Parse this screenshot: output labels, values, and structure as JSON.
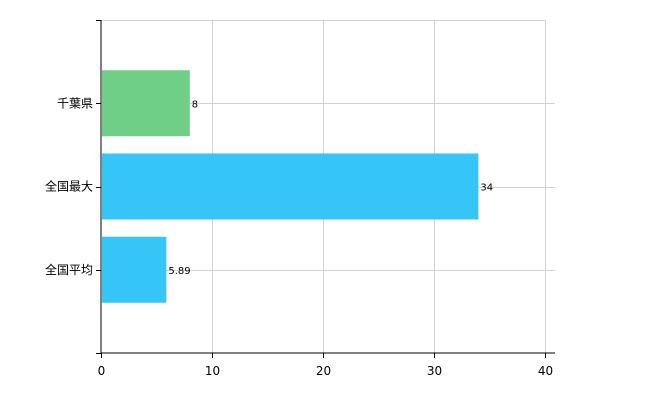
{
  "chart_data": {
    "type": "bar",
    "orientation": "horizontal",
    "categories": [
      "千葉県",
      "全国最大",
      "全国平均"
    ],
    "values": [
      8,
      34,
      5.89
    ],
    "value_labels": [
      "8",
      "34",
      "5.89"
    ],
    "colors": [
      "#6fcf87",
      "#35c6f7",
      "#35c6f7"
    ],
    "xlim": [
      0,
      40
    ],
    "xticks": [
      0,
      10,
      20,
      30,
      40
    ],
    "xtick_labels": [
      "0",
      "10",
      "20",
      "30",
      "40"
    ],
    "grid": true,
    "legend": "none"
  }
}
